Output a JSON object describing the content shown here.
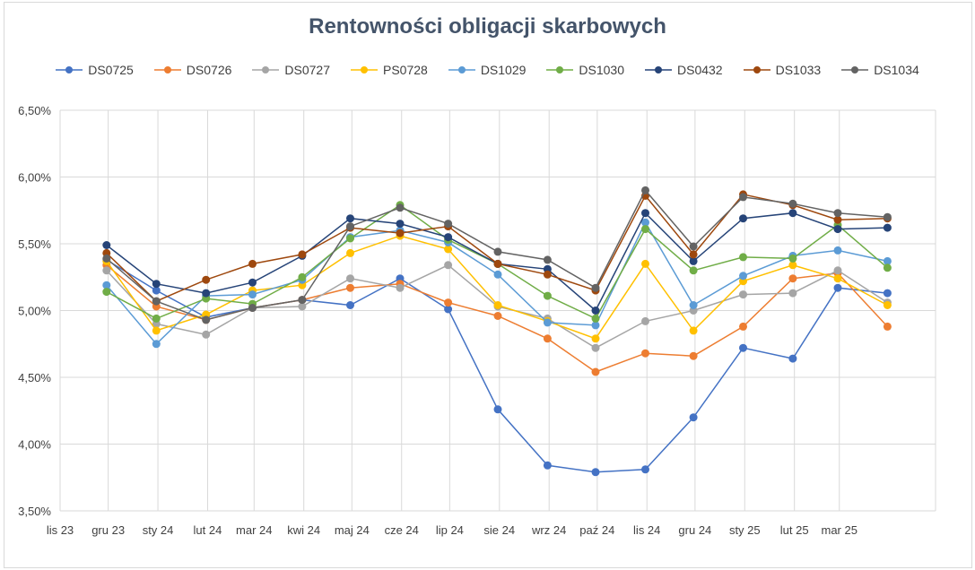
{
  "chart_data": {
    "type": "line",
    "title": "Rentowności obligacji skarbowych",
    "xlabel": "",
    "ylabel": "",
    "ylim": [
      3.5,
      6.5
    ],
    "ytick_step": 0.5,
    "grid": true,
    "legend_position": "top",
    "ytick_labels": [
      "3,50%",
      "4,00%",
      "4,50%",
      "5,00%",
      "5,50%",
      "6,00%",
      "6,50%"
    ],
    "x_tick_labels": [
      "lis 23",
      "gru 23",
      "sty 24",
      "lut 24",
      "mar 24",
      "kwi 24",
      "maj 24",
      "cze 24",
      "lip 24",
      "sie 24",
      "wrz 24",
      "paź 24",
      "lis 24",
      "gru 24",
      "sty 25",
      "lut 25",
      "mar 25"
    ],
    "x_points": [
      "2023-11-30",
      "2023-12-31",
      "2024-01-31",
      "2024-02-29",
      "2024-03-31",
      "2024-04-30",
      "2024-05-31",
      "2024-06-30",
      "2024-07-31",
      "2024-08-31",
      "2024-09-30",
      "2024-10-31",
      "2024-11-30",
      "2024-12-31",
      "2025-01-31",
      "2025-02-28",
      "2025-03-31",
      "2025-04-30"
    ],
    "series": [
      {
        "name": "DS0725",
        "color": "#4472c4",
        "values": [
          5.38,
          5.15,
          4.95,
          5.02,
          5.08,
          5.04,
          5.24,
          5.01,
          4.26,
          3.84,
          3.79,
          3.81,
          4.2,
          4.72,
          4.64,
          5.17,
          5.13,
          null
        ]
      },
      {
        "name": "DS0726",
        "color": "#ed7d31",
        "values": [
          5.34,
          5.03,
          4.93,
          5.02,
          5.08,
          5.17,
          5.2,
          5.06,
          4.96,
          4.79,
          4.54,
          4.68,
          4.66,
          4.88,
          5.24,
          5.28,
          4.88,
          null
        ]
      },
      {
        "name": "DS0727",
        "color": "#a5a5a5",
        "values": [
          5.3,
          4.9,
          4.82,
          5.02,
          5.03,
          5.24,
          5.17,
          5.34,
          5.03,
          4.94,
          4.72,
          4.92,
          5.0,
          5.12,
          5.13,
          5.3,
          5.06,
          null
        ]
      },
      {
        "name": "PS0728",
        "color": "#ffc000",
        "values": [
          5.37,
          4.85,
          4.97,
          5.15,
          5.19,
          5.43,
          5.56,
          5.46,
          5.04,
          4.92,
          4.79,
          5.35,
          4.85,
          5.22,
          5.34,
          5.24,
          5.04,
          null
        ]
      },
      {
        "name": "DS1029",
        "color": "#5b9bd5",
        "values": [
          5.19,
          4.75,
          5.11,
          5.12,
          5.23,
          5.55,
          5.6,
          5.51,
          5.27,
          4.91,
          4.89,
          5.66,
          5.04,
          5.26,
          5.41,
          5.45,
          5.37,
          null
        ]
      },
      {
        "name": "DS1030",
        "color": "#70ad47",
        "values": [
          5.14,
          4.94,
          5.09,
          5.05,
          5.25,
          5.54,
          5.79,
          5.53,
          5.35,
          5.11,
          4.94,
          5.61,
          5.3,
          5.4,
          5.39,
          5.64,
          5.32,
          null
        ]
      },
      {
        "name": "DS0432",
        "color": "#264478",
        "values": [
          5.49,
          5.2,
          5.13,
          5.21,
          5.41,
          5.69,
          5.65,
          5.55,
          5.35,
          5.31,
          5.0,
          5.73,
          5.37,
          5.69,
          5.73,
          5.61,
          5.62,
          null
        ]
      },
      {
        "name": "DS1033",
        "color": "#9e480e",
        "values": [
          5.43,
          5.07,
          5.23,
          5.35,
          5.42,
          5.62,
          5.58,
          5.63,
          5.35,
          5.27,
          5.15,
          5.86,
          5.42,
          5.87,
          5.79,
          5.68,
          5.69,
          null
        ]
      },
      {
        "name": "DS1034",
        "color": "#636363",
        "values": [
          5.39,
          5.07,
          4.93,
          5.02,
          5.08,
          5.63,
          5.77,
          5.65,
          5.44,
          5.38,
          5.17,
          5.9,
          5.48,
          5.85,
          5.8,
          5.73,
          5.7,
          null
        ]
      }
    ]
  }
}
